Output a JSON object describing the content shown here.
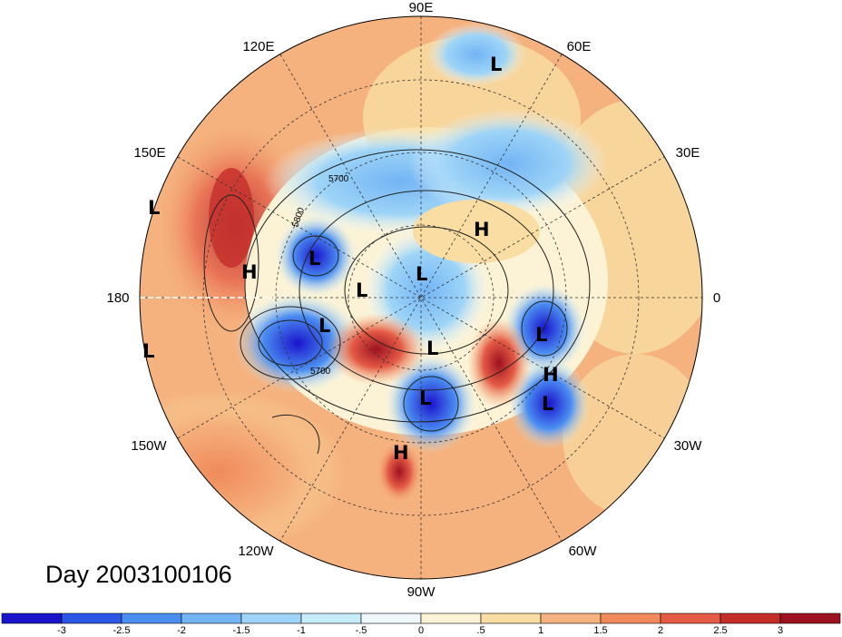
{
  "title": "Day 2003100106",
  "longitude_labels": [
    {
      "text": "90E"
    },
    {
      "text": "60E"
    },
    {
      "text": "30E"
    },
    {
      "text": "0"
    },
    {
      "text": "30W"
    },
    {
      "text": "60W"
    },
    {
      "text": "90W"
    },
    {
      "text": "120W"
    },
    {
      "text": "150W"
    },
    {
      "text": "180"
    },
    {
      "text": "150E"
    },
    {
      "text": "120E"
    }
  ],
  "pressure_centers": [
    "L",
    "L",
    "H",
    "L",
    "L",
    "L",
    "L",
    "L",
    "L",
    "L",
    "H",
    "H",
    "L",
    "L"
  ],
  "contour_labels": [
    "5700",
    "5800",
    "5700"
  ],
  "colorbar": {
    "labels": [
      "-3",
      "-2.5",
      "-2",
      "-1.5",
      "-1",
      "-.5",
      "0",
      ".5",
      "1",
      "1.5",
      "2",
      "2.5",
      "3"
    ],
    "colors": [
      "#1a14cc",
      "#2d55e6",
      "#4b8ef2",
      "#73b4f5",
      "#9dd4f7",
      "#c7ecfa",
      "#eef8fc",
      "#fcf3d6",
      "#f9dda3",
      "#f5b27e",
      "#f08a5a",
      "#e45a45",
      "#c42d2a",
      "#9d1120"
    ]
  }
}
